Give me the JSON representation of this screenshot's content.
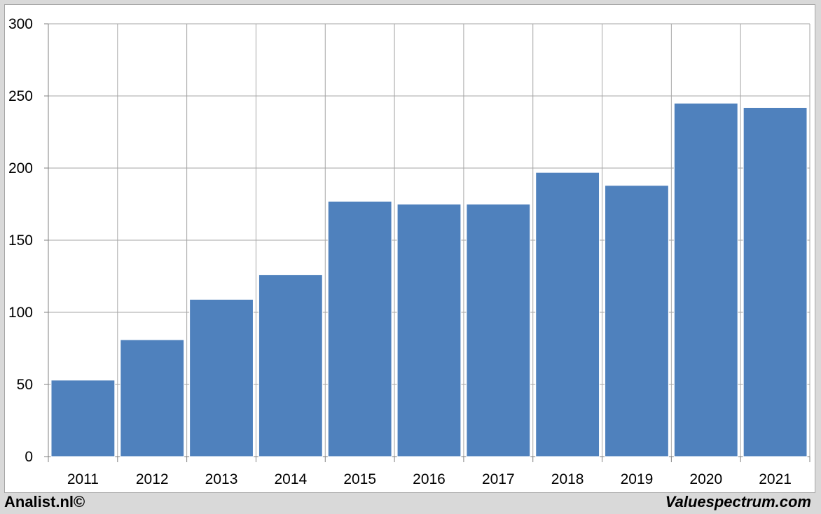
{
  "chart_data": {
    "type": "bar",
    "title": "",
    "xlabel": "",
    "ylabel": "",
    "categories": [
      "2011",
      "2012",
      "2013",
      "2014",
      "2015",
      "2016",
      "2017",
      "2018",
      "2019",
      "2020",
      "2021"
    ],
    "values": [
      53,
      81,
      109,
      126,
      177,
      175,
      175,
      197,
      188,
      245,
      242
    ],
    "ylim": [
      0,
      300
    ],
    "yticks": [
      0,
      50,
      100,
      150,
      200,
      250,
      300
    ],
    "grid": true,
    "bar_color": "#4f81bd",
    "grid_color": "#a6a6a6"
  },
  "footer": {
    "left_text": "Analist.nl©",
    "right_text": "Valuespectrum.com"
  }
}
